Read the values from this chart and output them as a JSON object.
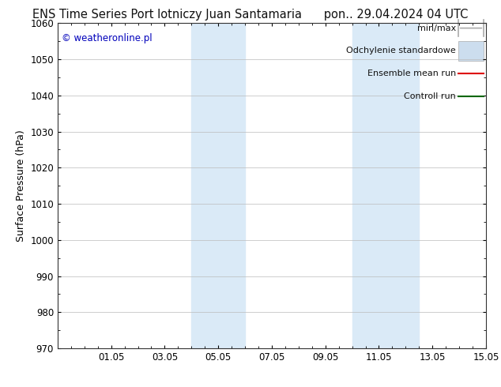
{
  "title_left": "ENS Time Series Port lotniczy Juan Santamaria",
  "title_right": "pon.. 29.04.2024 04 UTC",
  "ylabel": "Surface Pressure (hPa)",
  "ylim": [
    970,
    1060
  ],
  "yticks": [
    970,
    980,
    990,
    1000,
    1010,
    1020,
    1030,
    1040,
    1050,
    1060
  ],
  "xlim": [
    0,
    16
  ],
  "xtick_labels": [
    "01.05",
    "03.05",
    "05.05",
    "07.05",
    "09.05",
    "11.05",
    "13.05",
    "15.05"
  ],
  "xtick_positions": [
    2,
    4,
    6,
    8,
    10,
    12,
    14,
    16
  ],
  "shaded_bands": [
    {
      "xstart": 5.0,
      "xend": 7.0,
      "color": "#daeaf7"
    },
    {
      "xstart": 11.0,
      "xend": 13.5,
      "color": "#daeaf7"
    }
  ],
  "watermark_text": "© weatheronline.pl",
  "watermark_color": "#0000bb",
  "bg_color": "#ffffff",
  "plot_bg_color": "#ffffff",
  "grid_color": "#bbbbbb",
  "title_fontsize": 10.5,
  "tick_fontsize": 8.5,
  "label_fontsize": 9,
  "legend_fontsize": 8,
  "legend_items": [
    {
      "label": "min/max",
      "lcolor": "#aaaaaa",
      "style": "errbar"
    },
    {
      "label": "Odchylenie standardowe",
      "lcolor": "#ccddee",
      "style": "patch"
    },
    {
      "label": "Ensemble mean run",
      "lcolor": "#dd0000",
      "style": "line"
    },
    {
      "label": "Controll run",
      "lcolor": "#006600",
      "style": "line"
    }
  ]
}
